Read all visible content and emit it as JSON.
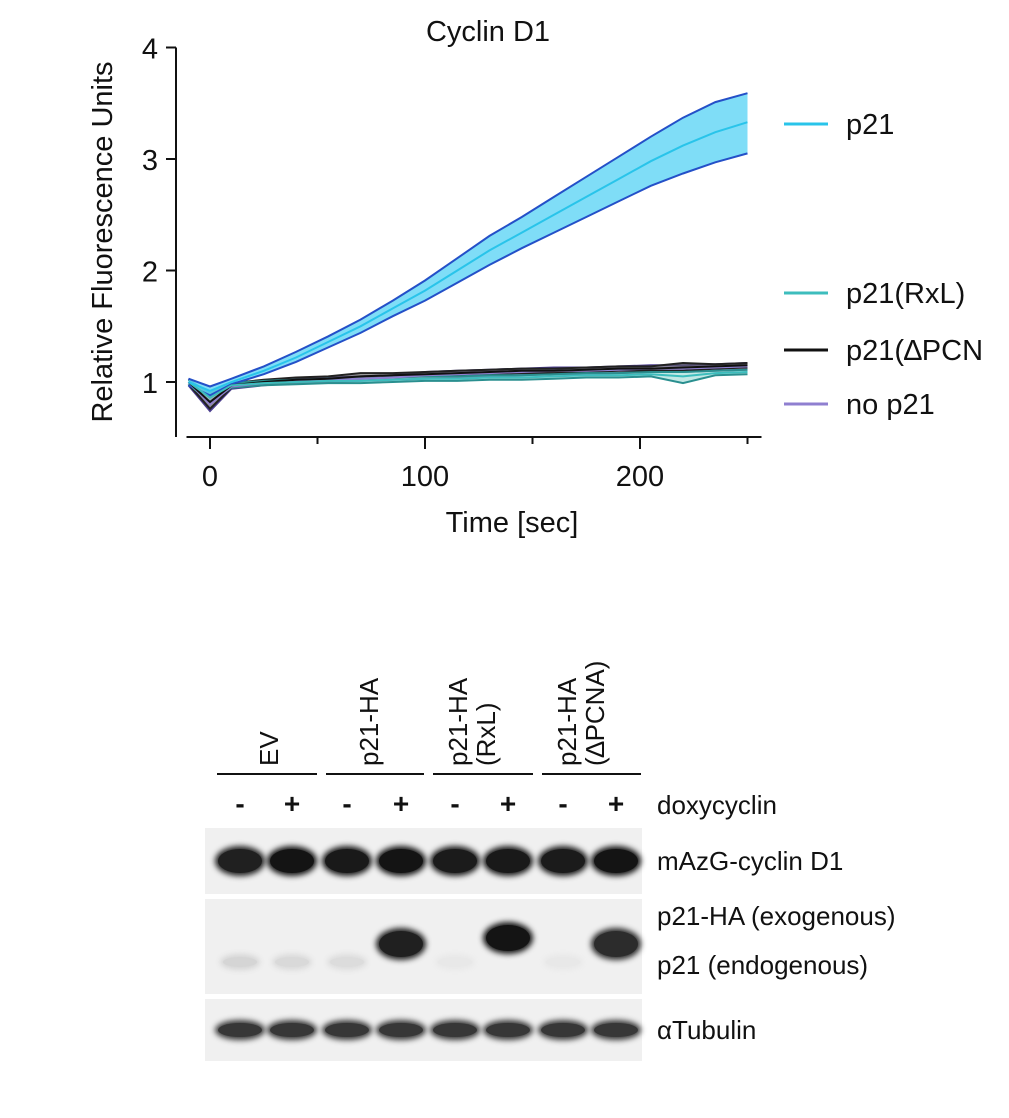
{
  "chart_data": {
    "type": "line",
    "title": "Cyclin D1",
    "xlabel": "Time [sec]",
    "ylabel": "Relative Fluorescence Units",
    "xlim": [
      -10,
      250
    ],
    "ylim": [
      0.5,
      4
    ],
    "xticks": [
      0,
      100,
      200
    ],
    "yticks": [
      1,
      2,
      3,
      4
    ],
    "legend_position": "right",
    "x": [
      -10,
      0,
      10,
      25,
      40,
      55,
      70,
      85,
      100,
      115,
      130,
      145,
      160,
      175,
      190,
      205,
      220,
      235,
      250
    ],
    "series": [
      {
        "name": "p21",
        "color": "#29c4ea",
        "values": [
          1.0,
          0.92,
          1.0,
          1.1,
          1.22,
          1.36,
          1.5,
          1.66,
          1.82,
          2.0,
          2.18,
          2.34,
          2.5,
          2.66,
          2.82,
          2.98,
          3.12,
          3.24,
          3.33
        ],
        "lower": [
          0.97,
          0.88,
          0.98,
          1.07,
          1.18,
          1.31,
          1.44,
          1.59,
          1.73,
          1.89,
          2.05,
          2.2,
          2.34,
          2.48,
          2.62,
          2.76,
          2.87,
          2.97,
          3.05
        ],
        "upper": [
          1.03,
          0.96,
          1.03,
          1.14,
          1.27,
          1.41,
          1.56,
          1.73,
          1.91,
          2.11,
          2.31,
          2.48,
          2.66,
          2.84,
          3.02,
          3.2,
          3.37,
          3.51,
          3.59
        ]
      },
      {
        "name": "p21(RxL)",
        "color": "#3dbdbd",
        "values": [
          1.0,
          0.86,
          0.97,
          0.99,
          1.0,
          1.01,
          1.01,
          1.02,
          1.03,
          1.03,
          1.04,
          1.04,
          1.05,
          1.06,
          1.06,
          1.07,
          1.05,
          1.08,
          1.09
        ],
        "lower": [
          0.98,
          0.82,
          0.95,
          0.97,
          0.98,
          0.99,
          0.99,
          1.0,
          1.01,
          1.01,
          1.02,
          1.02,
          1.03,
          1.04,
          1.04,
          1.05,
          0.99,
          1.06,
          1.07
        ],
        "upper": [
          1.02,
          0.9,
          0.99,
          1.01,
          1.02,
          1.03,
          1.03,
          1.04,
          1.05,
          1.05,
          1.06,
          1.06,
          1.07,
          1.08,
          1.08,
          1.09,
          1.09,
          1.1,
          1.11
        ]
      },
      {
        "name": "p21(∆PCN",
        "color": "#111111",
        "values": [
          1.0,
          0.82,
          0.97,
          1.0,
          1.02,
          1.03,
          1.05,
          1.06,
          1.07,
          1.08,
          1.09,
          1.1,
          1.1,
          1.11,
          1.12,
          1.12,
          1.13,
          1.14,
          1.15
        ],
        "lower": [
          0.98,
          0.76,
          0.95,
          0.98,
          1.0,
          1.01,
          1.03,
          1.04,
          1.05,
          1.06,
          1.07,
          1.08,
          1.08,
          1.09,
          1.1,
          1.1,
          1.1,
          1.12,
          1.13
        ],
        "upper": [
          1.02,
          0.88,
          0.99,
          1.02,
          1.04,
          1.05,
          1.08,
          1.08,
          1.09,
          1.1,
          1.11,
          1.12,
          1.12,
          1.13,
          1.14,
          1.14,
          1.17,
          1.16,
          1.17
        ]
      },
      {
        "name": "no p21",
        "color": "#8f7fd0",
        "values": [
          1.0,
          0.8,
          0.96,
          0.99,
          1.01,
          1.02,
          1.03,
          1.04,
          1.06,
          1.07,
          1.08,
          1.09,
          1.1,
          1.1,
          1.11,
          1.12,
          1.12,
          1.13,
          1.14
        ],
        "lower": [
          0.97,
          0.74,
          0.94,
          0.97,
          0.99,
          1.0,
          1.01,
          1.02,
          1.03,
          1.04,
          1.05,
          1.06,
          1.07,
          1.07,
          1.08,
          1.09,
          1.09,
          1.1,
          1.11
        ],
        "upper": [
          1.03,
          0.86,
          0.98,
          1.01,
          1.03,
          1.04,
          1.05,
          1.06,
          1.09,
          1.1,
          1.11,
          1.12,
          1.13,
          1.13,
          1.14,
          1.15,
          1.15,
          1.16,
          1.17
        ]
      }
    ]
  },
  "blot": {
    "groups": [
      {
        "label": "EV"
      },
      {
        "label": "p21-HA"
      },
      {
        "label": "p21-HA\n(RxL)"
      },
      {
        "label": "p21-HA\n(∆PCNA)"
      }
    ],
    "treatment_label": "doxycyclin",
    "signs": [
      "-",
      "+",
      "-",
      "+",
      "-",
      "+",
      "-",
      "+"
    ],
    "rows": [
      {
        "labels": [
          "mAzG-cyclin D1"
        ],
        "bands": [
          0.95,
          1.0,
          0.98,
          1.0,
          0.97,
          0.98,
          0.97,
          1.0
        ]
      },
      {
        "labels": [
          "p21-HA (exogenous)",
          "p21 (endogenous)"
        ],
        "exogenous": [
          0,
          0,
          0,
          0.95,
          0,
          1.0,
          0,
          0.9
        ],
        "endogenous": [
          0.18,
          0.16,
          0.15,
          0,
          0.1,
          0,
          0.1,
          0
        ]
      },
      {
        "labels": [
          "αTubulin"
        ],
        "bands": [
          0.85,
          0.85,
          0.85,
          0.85,
          0.85,
          0.85,
          0.85,
          0.85
        ]
      }
    ]
  }
}
